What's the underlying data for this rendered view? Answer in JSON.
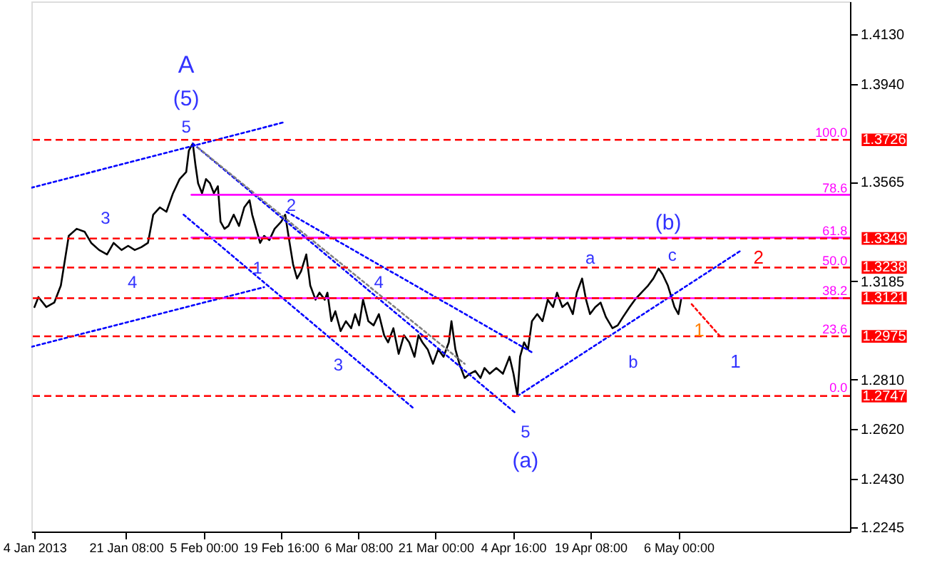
{
  "chart_data": {
    "type": "line",
    "xlim": [
      "2013-01-03T10:00",
      "2013-06-07T12:00"
    ],
    "ylim": [
      1.2229,
      1.4255
    ],
    "xticks": [
      {
        "value": "2013-01-04T00:00",
        "label": "4 Jan 2013"
      },
      {
        "value": "2013-01-21T08:00",
        "label": "21 Jan 08:00"
      },
      {
        "value": "2013-02-05T00:00",
        "label": "5 Feb 00:00"
      },
      {
        "value": "2013-02-19T16:00",
        "label": "19 Feb 16:00"
      },
      {
        "value": "2013-03-06T08:00",
        "label": "6 Mar 08:00"
      },
      {
        "value": "2013-03-21T00:00",
        "label": "21 Mar 00:00"
      },
      {
        "value": "2013-04-04T16:00",
        "label": "4 Apr 16:00"
      },
      {
        "value": "2013-04-19T08:00",
        "label": "19 Apr 08:00"
      },
      {
        "value": "2013-05-06T00:00",
        "label": "6 May 00:00"
      }
    ],
    "yticks": [
      {
        "value": 1.413,
        "label": "1.4130"
      },
      {
        "value": 1.394,
        "label": "1.3940"
      },
      {
        "value": 1.3565,
        "label": "1.3565"
      },
      {
        "value": 1.3185,
        "label": "1.3185"
      },
      {
        "value": 1.281,
        "label": "1.2810"
      },
      {
        "value": 1.262,
        "label": "1.2620"
      },
      {
        "value": 1.243,
        "label": "1.2430"
      },
      {
        "value": 1.2245,
        "label": "1.2245"
      }
    ],
    "grid": false,
    "series": [
      {
        "color": "#000000",
        "line_style": "solid",
        "x": [
          "2013-01-04T00:00",
          "2013-01-04T18:00",
          "2013-01-06T06:00",
          "2013-01-07T18:00",
          "2013-01-09T00:00",
          "2013-01-10T12:00",
          "2013-01-12T00:00",
          "2013-01-13T12:00",
          "2013-01-14T18:00",
          "2013-01-16T06:00",
          "2013-01-17T18:00",
          "2013-01-19T00:00",
          "2013-01-20T12:00",
          "2013-01-21T18:00",
          "2013-01-23T00:00",
          "2013-01-24T06:00",
          "2013-01-25T12:00",
          "2013-01-26T12:00",
          "2013-01-27T18:00",
          "2013-01-29T00:00",
          "2013-01-30T06:00",
          "2013-01-31T12:00",
          "2013-02-01T18:00",
          "2013-02-02T06:00",
          "2013-02-03T00:00",
          "2013-02-03T12:00",
          "2013-02-04T00:00",
          "2013-02-04T18:00",
          "2013-02-05T12:00",
          "2013-02-06T06:00",
          "2013-02-07T00:00",
          "2013-02-07T18:00",
          "2013-02-08T06:00",
          "2013-02-09T00:00",
          "2013-02-09T18:00",
          "2013-02-10T18:00",
          "2013-02-11T18:00",
          "2013-02-12T18:00",
          "2013-02-13T18:00",
          "2013-02-14T06:00",
          "2013-02-15T00:00",
          "2013-02-15T18:00",
          "2013-02-16T12:00",
          "2013-02-17T12:00",
          "2013-02-18T12:00",
          "2013-02-19T18:00",
          "2013-02-20T12:00",
          "2013-02-21T06:00",
          "2013-02-22T00:00",
          "2013-02-22T18:00",
          "2013-02-23T12:00",
          "2013-02-24T12:00",
          "2013-02-25T06:00",
          "2013-02-26T06:00",
          "2013-02-27T00:00",
          "2013-02-28T00:00",
          "2013-02-28T12:00",
          "2013-03-01T06:00",
          "2013-03-02T00:00",
          "2013-03-03T00:00",
          "2013-03-04T00:00",
          "2013-03-05T00:00",
          "2013-03-05T18:00",
          "2013-03-06T12:00",
          "2013-03-07T06:00",
          "2013-03-08T06:00",
          "2013-03-09T06:00",
          "2013-03-10T06:00",
          "2013-03-11T06:00",
          "2013-03-12T00:00",
          "2013-03-13T00:00",
          "2013-03-14T00:00",
          "2013-03-15T00:00",
          "2013-03-16T00:00",
          "2013-03-17T00:00",
          "2013-03-17T18:00",
          "2013-03-18T12:00",
          "2013-03-19T12:00",
          "2013-03-20T12:00",
          "2013-03-21T12:00",
          "2013-03-22T12:00",
          "2013-03-23T12:00",
          "2013-03-24T00:00",
          "2013-03-24T18:00",
          "2013-03-25T12:00",
          "2013-03-26T12:00",
          "2013-03-27T12:00",
          "2013-03-28T12:00",
          "2013-03-29T12:00",
          "2013-03-30T06:00",
          "2013-03-31T06:00",
          "2013-04-01T12:00",
          "2013-04-02T18:00",
          "2013-04-04T00:00",
          "2013-04-04T18:00",
          "2013-04-05T12:00",
          "2013-04-06T00:00",
          "2013-04-06T18:00",
          "2013-04-07T12:00",
          "2013-04-08T06:00",
          "2013-04-09T06:00",
          "2013-04-10T06:00",
          "2013-04-11T06:00",
          "2013-04-12T06:00",
          "2013-04-13T00:00",
          "2013-04-14T00:00",
          "2013-04-15T00:00",
          "2013-04-16T00:00",
          "2013-04-16T18:00",
          "2013-04-17T18:00",
          "2013-04-18T12:00",
          "2013-04-19T06:00",
          "2013-04-20T06:00",
          "2013-04-21T06:00",
          "2013-04-22T06:00",
          "2013-04-23T12:00",
          "2013-04-24T12:00",
          "2013-04-25T12:00",
          "2013-04-26T18:00",
          "2013-04-27T18:00",
          "2013-04-29T00:00",
          "2013-04-30T06:00",
          "2013-05-01T06:00",
          "2013-05-02T06:00",
          "2013-05-03T00:00",
          "2013-05-04T00:00",
          "2013-05-05T06:00",
          "2013-05-06T00:00",
          "2013-05-06T12:00"
        ],
        "values": [
          1.3087,
          1.3125,
          1.3087,
          1.3104,
          1.3169,
          1.3359,
          1.3386,
          1.3375,
          1.3332,
          1.3305,
          1.3288,
          1.3332,
          1.3305,
          1.3321,
          1.3305,
          1.3316,
          1.3332,
          1.344,
          1.3468,
          1.3451,
          1.3522,
          1.3576,
          1.3603,
          1.3685,
          1.3712,
          1.363,
          1.356,
          1.3522,
          1.3576,
          1.356,
          1.3522,
          1.3549,
          1.3413,
          1.3386,
          1.3397,
          1.344,
          1.3397,
          1.3468,
          1.3495,
          1.344,
          1.3386,
          1.3332,
          1.3359,
          1.3343,
          1.3386,
          1.3413,
          1.344,
          1.3343,
          1.325,
          1.3196,
          1.3223,
          1.3288,
          1.3169,
          1.3115,
          1.3142,
          1.3115,
          1.3142,
          1.3033,
          1.3071,
          1.2995,
          1.3033,
          1.3006,
          1.306,
          1.3017,
          1.3115,
          1.3033,
          1.3017,
          1.306,
          1.2979,
          1.2952,
          1.3006,
          1.2908,
          1.2979,
          1.2952,
          1.2897,
          1.2979,
          1.2952,
          1.2925,
          1.287,
          1.2925,
          1.2897,
          1.2952,
          1.3033,
          1.2925,
          1.287,
          1.2816,
          1.2832,
          1.2843,
          1.2816,
          1.2854,
          1.2832,
          1.2854,
          1.2832,
          1.2897,
          1.2832,
          1.2747,
          1.2897,
          1.2952,
          1.2925,
          1.3033,
          1.306,
          1.3033,
          1.3115,
          1.3087,
          1.3142,
          1.3087,
          1.3104,
          1.306,
          1.3142,
          1.3196,
          1.3115,
          1.306,
          1.3087,
          1.3104,
          1.3049,
          1.3006,
          1.3017,
          1.3049,
          1.3087,
          1.3115,
          1.3142,
          1.3169,
          1.3196,
          1.3234,
          1.3212,
          1.3169,
          1.3087,
          1.306,
          1.3115
        ]
      },
      {
        "color": "#0000ff",
        "line_style": "dotted",
        "x": [
          "2013-01-03T10:00",
          "2013-02-20T06:00"
        ],
        "values": [
          1.3543,
          1.3793
        ]
      },
      {
        "color": "#0000ff",
        "line_style": "dotted",
        "x": [
          "2013-01-03T10:00",
          "2013-02-16T12:00"
        ],
        "values": [
          1.2935,
          1.3163
        ]
      },
      {
        "color": "#0000ff",
        "line_style": "dotted",
        "x": [
          "2013-02-03T00:00",
          "2013-04-05T06:00"
        ],
        "values": [
          1.3712,
          1.268
        ]
      },
      {
        "color": "#0000ff",
        "line_style": "dotted",
        "x": [
          "2013-02-01T06:00",
          "2013-03-17T00:00"
        ],
        "values": [
          1.344,
          1.2697
        ]
      },
      {
        "color": "#0000ff",
        "line_style": "dotted",
        "x": [
          "2013-02-20T18:00",
          "2013-04-08T06:00"
        ],
        "values": [
          1.3451,
          1.2914
        ]
      },
      {
        "color": "#808080",
        "line_style": "dotted",
        "x": [
          "2013-02-04T00:00",
          "2013-03-26T12:00"
        ],
        "values": [
          1.3696,
          1.287
        ]
      },
      {
        "color": "#0000ff",
        "line_style": "dotted",
        "x": [
          "2013-04-05T12:00",
          "2013-05-18T00:00"
        ],
        "values": [
          1.2747,
          1.3305
        ]
      },
      {
        "color": "#ff0000",
        "line_style": "dotted",
        "x": [
          "2013-05-08T12:00",
          "2013-05-14T00:00"
        ],
        "values": [
          1.3098,
          1.2973
        ]
      },
      {
        "color": "#ff00ff",
        "line_style": "solid",
        "x": [
          "2013-02-02T18:00",
          "2013-06-07T12:00"
        ],
        "values": [
          1.3516,
          1.3516
        ]
      },
      {
        "color": "#ff00ff",
        "line_style": "solid",
        "x": [
          "2013-02-02T18:00",
          "2013-06-07T12:00"
        ],
        "values": [
          1.3352,
          1.3352
        ]
      },
      {
        "color": "#ff00ff",
        "line_style": "solid",
        "x": [
          "2013-02-02T18:00",
          "2013-06-07T12:00"
        ],
        "values": [
          1.3121,
          1.3121
        ]
      }
    ],
    "ref_lines": [
      {
        "axis": "y",
        "value": 1.3726,
        "label": "1.3726",
        "color": "#ff0000",
        "line_style": "dashed"
      },
      {
        "axis": "y",
        "value": 1.3349,
        "label": "1.3349",
        "color": "#ff0000",
        "line_style": "dashed"
      },
      {
        "axis": "y",
        "value": 1.3238,
        "label": "1.3238",
        "color": "#ff0000",
        "line_style": "dashed"
      },
      {
        "axis": "y",
        "value": 1.3121,
        "label": "1.3121",
        "color": "#ff0000",
        "line_style": "dashed"
      },
      {
        "axis": "y",
        "value": 1.2975,
        "label": "1.2975",
        "color": "#ff0000",
        "line_style": "dashed"
      },
      {
        "axis": "y",
        "value": 1.2747,
        "label": "1.2747",
        "color": "#ff0000",
        "line_style": "dashed"
      }
    ],
    "annotations": [
      "A",
      "(5)",
      "5",
      "3",
      "4",
      "2",
      "1",
      "4",
      "3",
      "5",
      "(a)",
      "a",
      "b",
      "c",
      "(b)",
      "2",
      "1",
      "1",
      "100.0",
      "78.6",
      "61.8",
      "50.0",
      "38.2",
      "23.6",
      "0.0"
    ]
  }
}
